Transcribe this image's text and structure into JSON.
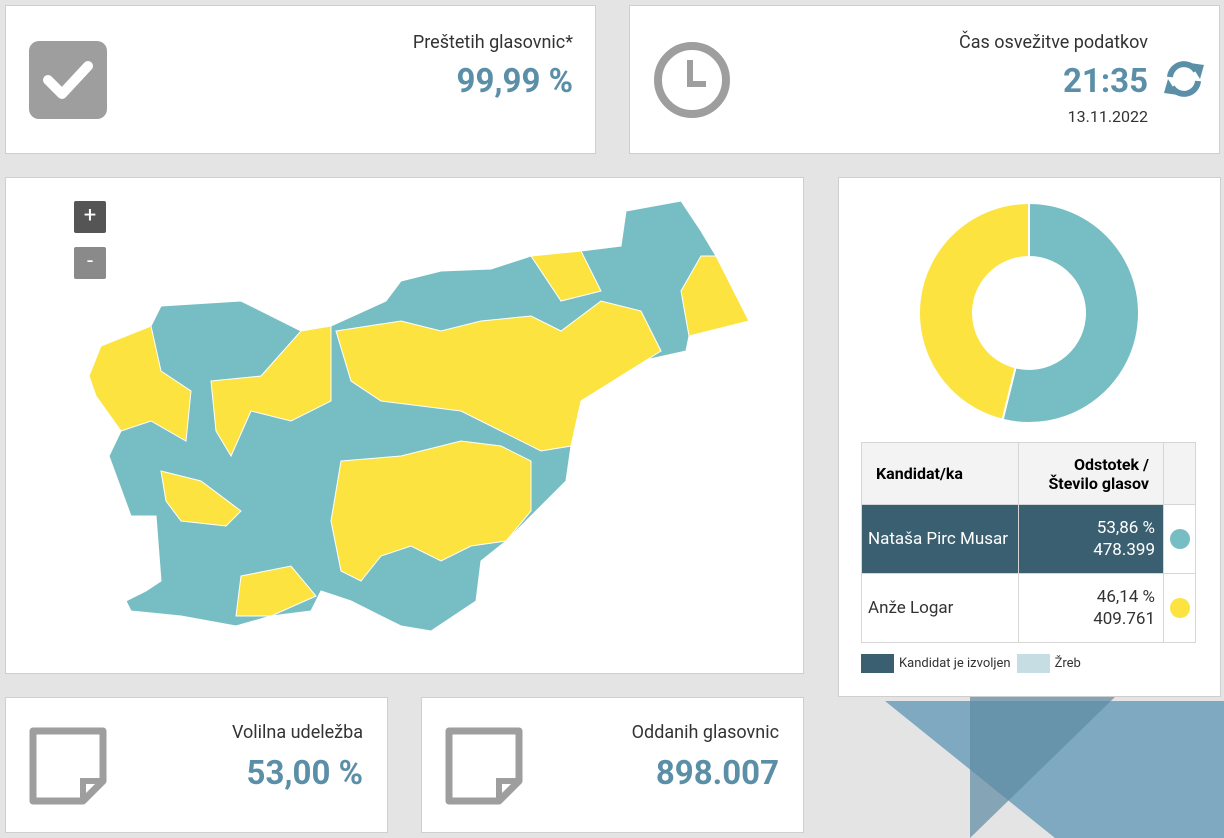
{
  "counted": {
    "label": "Preštetih glasovnic*",
    "value": "99,99 %"
  },
  "refresh": {
    "label": "Čas osvežitve podatkov",
    "time": "21:35",
    "date": "13.11.2022"
  },
  "map": {
    "zoom_in": "+",
    "zoom_out": "-"
  },
  "results": {
    "header": [
      "Kandidat/ka",
      "Odstotek / Število glasov"
    ],
    "rows": [
      {
        "name": "Nataša Pirc Musar",
        "percent": 53.86,
        "percent_label": "53,86 %",
        "votes": "478.399",
        "color": "#76bec3",
        "elected": true
      },
      {
        "name": "Anže Logar",
        "percent": 46.14,
        "percent_label": "46,14 %",
        "votes": "409.761",
        "color": "#fce340",
        "elected": false
      }
    ],
    "legend": [
      {
        "label": "Kandidat je izvoljen",
        "color": "#3a5f70"
      },
      {
        "label": "Žreb",
        "color": "#c5dde3"
      }
    ]
  },
  "turnout": {
    "label": "Volilna udeležba",
    "value": "53,00 %"
  },
  "cast": {
    "label": "Oddanih glasovnic",
    "value": "898.007"
  }
}
